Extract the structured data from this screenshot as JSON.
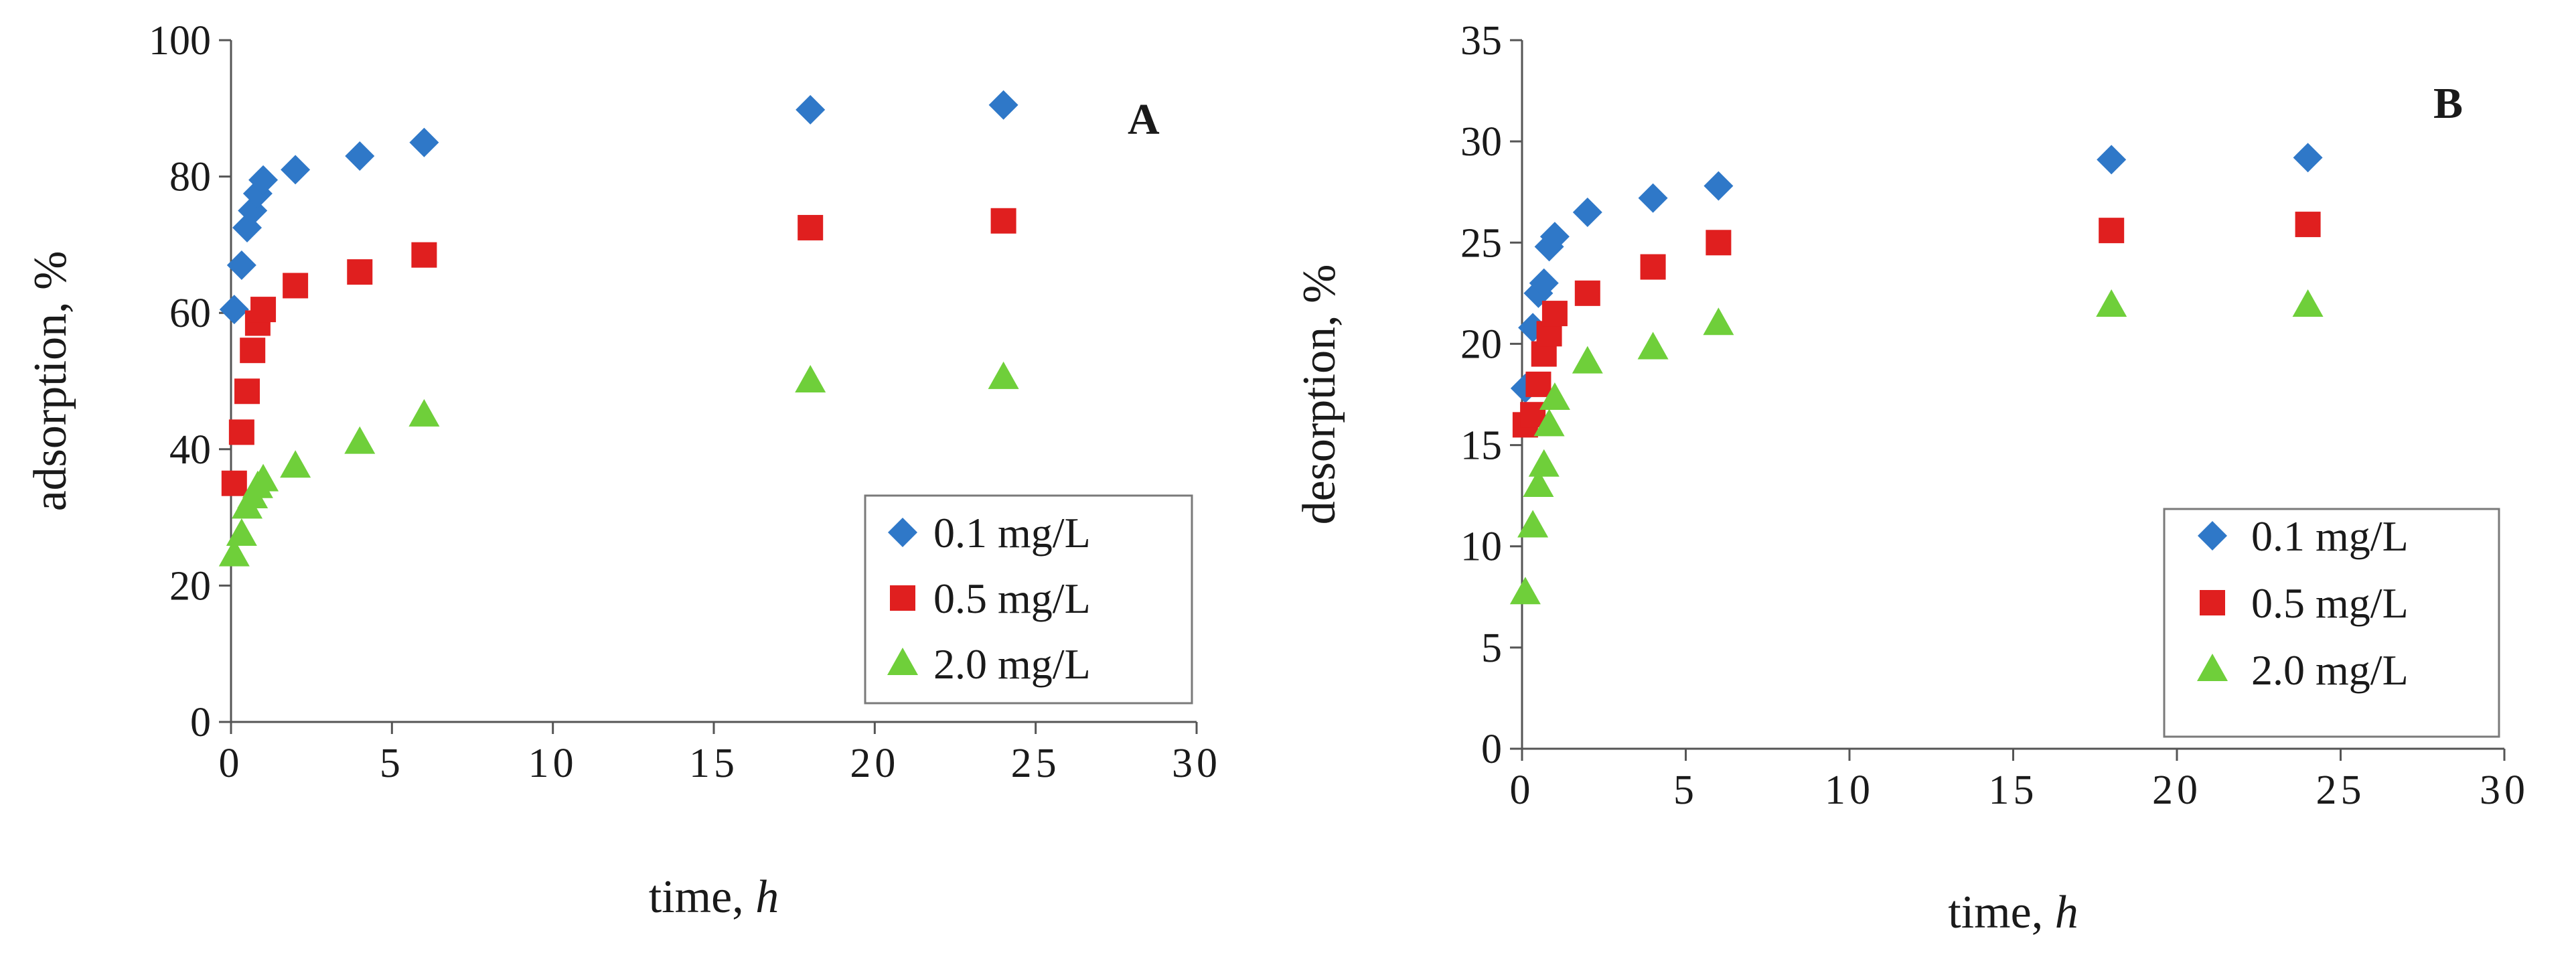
{
  "chart_data": [
    {
      "type": "scatter",
      "panel_label": "A",
      "title": "",
      "xlabel": "time,",
      "xlabel_var": "h",
      "ylabel": "adsorption, %",
      "xlim": [
        0,
        30
      ],
      "ylim": [
        0,
        100
      ],
      "xticks": [
        0,
        5,
        10,
        15,
        20,
        25,
        30
      ],
      "yticks": [
        0,
        20,
        40,
        60,
        80,
        100
      ],
      "grid": false,
      "legend_position": "bottom-right",
      "series": [
        {
          "name": "0.1 mg/L",
          "marker": "diamond",
          "color": "#2f78c8",
          "x": [
            0.1,
            0.33,
            0.5,
            0.67,
            0.83,
            1,
            2,
            4,
            6,
            18,
            24
          ],
          "y": [
            60.5,
            67.0,
            72.5,
            75.0,
            77.5,
            79.5,
            81.0,
            83.0,
            85.0,
            89.8,
            90.5
          ]
        },
        {
          "name": "0.5 mg/L",
          "marker": "square",
          "color": "#e01f1f",
          "x": [
            0.1,
            0.33,
            0.5,
            0.67,
            0.83,
            1,
            2,
            4,
            6,
            18,
            24
          ],
          "y": [
            35.0,
            42.5,
            48.5,
            54.5,
            58.5,
            60.5,
            64.0,
            66.0,
            68.5,
            72.5,
            73.5
          ]
        },
        {
          "name": "2.0 mg/L",
          "marker": "triangle",
          "color": "#6fcf3a",
          "x": [
            0.1,
            0.33,
            0.5,
            0.67,
            0.83,
            1,
            2,
            4,
            6,
            18,
            24
          ],
          "y": [
            24.5,
            27.5,
            31.5,
            33.0,
            34.5,
            35.5,
            37.5,
            41.0,
            45.0,
            50.0,
            50.5
          ]
        }
      ]
    },
    {
      "type": "scatter",
      "panel_label": "B",
      "title": "",
      "xlabel": "time,",
      "xlabel_var": "h",
      "ylabel": "desorption, %",
      "xlim": [
        0,
        30
      ],
      "ylim": [
        0,
        35
      ],
      "xticks": [
        0,
        5,
        10,
        15,
        20,
        25,
        30
      ],
      "yticks": [
        0,
        5,
        10,
        15,
        20,
        25,
        30,
        35
      ],
      "grid": false,
      "legend_position": "bottom-right",
      "series": [
        {
          "name": "0.1 mg/L",
          "marker": "diamond",
          "color": "#2f78c8",
          "x": [
            0.1,
            0.33,
            0.5,
            0.67,
            0.83,
            1,
            2,
            4,
            6,
            18,
            24
          ],
          "y": [
            17.8,
            20.8,
            22.5,
            23.0,
            24.8,
            25.3,
            26.5,
            27.2,
            27.8,
            29.1,
            29.2
          ]
        },
        {
          "name": "0.5 mg/L",
          "marker": "square",
          "color": "#e01f1f",
          "x": [
            0.1,
            0.33,
            0.5,
            0.67,
            0.83,
            1,
            2,
            4,
            6,
            18,
            24
          ],
          "y": [
            16.0,
            16.5,
            18.0,
            19.5,
            20.5,
            21.5,
            22.5,
            23.8,
            25.0,
            25.6,
            25.9
          ]
        },
        {
          "name": "2.0 mg/L",
          "marker": "triangle",
          "color": "#6fcf3a",
          "x": [
            0.1,
            0.33,
            0.5,
            0.67,
            0.83,
            1,
            2,
            4,
            6,
            18,
            24
          ],
          "y": [
            7.7,
            11.0,
            13.0,
            14.0,
            16.0,
            17.3,
            19.1,
            19.8,
            21.0,
            21.9,
            21.9
          ]
        }
      ]
    }
  ]
}
